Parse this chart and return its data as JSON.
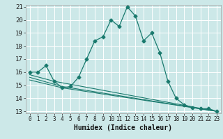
{
  "title": "",
  "xlabel": "Humidex (Indice chaleur)",
  "ylabel": "",
  "xlim": [
    -0.5,
    23.5
  ],
  "ylim": [
    12.85,
    21.15
  ],
  "yticks": [
    13,
    14,
    15,
    16,
    17,
    18,
    19,
    20,
    21
  ],
  "xticks": [
    0,
    1,
    2,
    3,
    4,
    5,
    6,
    7,
    8,
    9,
    10,
    11,
    12,
    13,
    14,
    15,
    16,
    17,
    18,
    19,
    20,
    21,
    22,
    23
  ],
  "bg_color": "#cce8e8",
  "grid_color": "#ffffff",
  "line_color": "#1a7a6e",
  "line1_x": [
    0,
    1,
    2,
    3,
    4,
    5,
    6,
    7,
    8,
    9,
    10,
    11,
    12,
    13,
    14,
    15,
    16,
    17,
    18,
    19,
    20,
    21,
    22,
    23
  ],
  "line1_y": [
    16.0,
    16.0,
    16.5,
    15.3,
    14.8,
    14.9,
    15.6,
    17.0,
    18.4,
    18.7,
    20.0,
    19.5,
    21.0,
    20.3,
    18.4,
    19.0,
    17.5,
    15.3,
    14.0,
    13.5,
    13.3,
    13.2,
    13.2,
    13.0
  ],
  "line2_x": [
    0,
    3,
    23
  ],
  "line2_y": [
    15.8,
    15.3,
    13.0
  ],
  "line3_x": [
    0,
    4,
    23
  ],
  "line3_y": [
    15.6,
    14.9,
    13.0
  ],
  "line4_x": [
    0,
    4,
    23
  ],
  "line4_y": [
    15.4,
    14.8,
    13.0
  ],
  "xlabel_fontsize": 7,
  "tick_fontsize": 5.5,
  "ytick_fontsize": 6.5
}
